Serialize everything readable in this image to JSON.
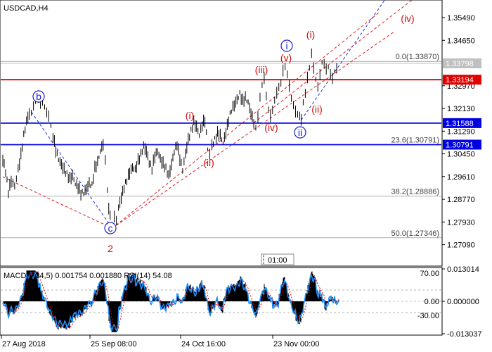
{
  "chart_data": [
    {
      "type": "candlestick",
      "title": "USDCAD,H4",
      "ylim": [
        1.2635,
        1.3609
      ],
      "price_ticks": [
        "1.35490",
        "1.34650",
        "1.32970",
        "1.32130",
        "1.31290",
        "1.30450",
        "1.29610",
        "1.28770",
        "1.27930",
        "1.27090"
      ],
      "levels": [
        {
          "label": "1.33798",
          "value": 1.33798,
          "color": "#c0c0c0"
        },
        {
          "label": "1.33194",
          "value": 1.33194,
          "color": "#e00000"
        },
        {
          "label": "1.31588",
          "value": 1.31588,
          "color": "#0000e0"
        },
        {
          "label": "1.30791",
          "value": 1.30791,
          "color": "#0000e0"
        }
      ],
      "fib_levels": [
        {
          "label": "0.0(1.33870)",
          "value": 1.3387
        },
        {
          "label": "23.6(1.30791)",
          "value": 1.30791
        },
        {
          "label": "38.2(1.28886)",
          "value": 1.28886
        },
        {
          "label": "50.0(1.27346)",
          "value": 1.27346
        }
      ],
      "price_path": [
        [
          0,
          1.302
        ],
        [
          4,
          1.298
        ],
        [
          8,
          1.2905
        ],
        [
          12,
          1.295
        ],
        [
          17,
          1.293
        ],
        [
          22,
          1.299
        ],
        [
          26,
          1.304
        ],
        [
          30,
          1.311
        ],
        [
          34,
          1.316
        ],
        [
          38,
          1.319
        ],
        [
          41,
          1.32
        ],
        [
          44,
          1.323
        ],
        [
          47,
          1.326
        ],
        [
          51,
          1.325
        ],
        [
          54,
          1.323
        ],
        [
          57,
          1.324
        ],
        [
          60,
          1.321
        ],
        [
          63,
          1.319
        ],
        [
          66,
          1.318
        ],
        [
          69,
          1.315
        ],
        [
          72,
          1.311
        ],
        [
          76,
          1.306
        ],
        [
          80,
          1.303
        ],
        [
          84,
          1.301
        ],
        [
          88,
          1.299
        ],
        [
          92,
          1.297
        ],
        [
          96,
          1.295
        ],
        [
          100,
          1.296
        ],
        [
          104,
          1.293
        ],
        [
          108,
          1.292
        ],
        [
          112,
          1.29
        ],
        [
          116,
          1.2905
        ],
        [
          120,
          1.292
        ],
        [
          124,
          1.294
        ],
        [
          128,
          1.293
        ],
        [
          132,
          1.299
        ],
        [
          136,
          1.301
        ],
        [
          140,
          1.305
        ],
        [
          144,
          1.308
        ],
        [
          147,
          1.303
        ],
        [
          150,
          1.292
        ],
        [
          152,
          1.285
        ],
        [
          154,
          1.282
        ],
        [
          157,
          1.277
        ],
        [
          160,
          1.2805
        ],
        [
          163,
          1.279
        ],
        [
          166,
          1.284
        ],
        [
          170,
          1.288
        ],
        [
          174,
          1.292
        ],
        [
          178,
          1.295
        ],
        [
          182,
          1.298
        ],
        [
          186,
          1.3
        ],
        [
          190,
          1.299
        ],
        [
          194,
          1.302
        ],
        [
          198,
          1.304
        ],
        [
          202,
          1.307
        ],
        [
          206,
          1.305
        ],
        [
          210,
          1.301
        ],
        [
          214,
          1.299
        ],
        [
          218,
          1.304
        ],
        [
          222,
          1.306
        ],
        [
          226,
          1.303
        ],
        [
          230,
          1.301
        ],
        [
          234,
          1.299
        ],
        [
          238,
          1.296
        ],
        [
          242,
          1.3
        ],
        [
          246,
          1.305
        ],
        [
          250,
          1.308
        ],
        [
          254,
          1.303
        ],
        [
          258,
          1.299
        ],
        [
          262,
          1.305
        ],
        [
          266,
          1.31
        ],
        [
          270,
          1.313
        ],
        [
          274,
          1.316
        ],
        [
          278,
          1.314
        ],
        [
          282,
          1.311
        ],
        [
          286,
          1.315
        ],
        [
          290,
          1.317
        ],
        [
          294,
          1.307
        ],
        [
          297,
          1.305
        ],
        [
          300,
          1.308
        ],
        [
          304,
          1.31
        ],
        [
          308,
          1.312
        ],
        [
          312,
          1.311
        ],
        [
          316,
          1.308
        ],
        [
          320,
          1.312
        ],
        [
          324,
          1.317
        ],
        [
          328,
          1.321
        ],
        [
          332,
          1.323
        ],
        [
          336,
          1.325
        ],
        [
          340,
          1.327
        ],
        [
          344,
          1.324
        ],
        [
          348,
          1.325
        ],
        [
          352,
          1.323
        ],
        [
          356,
          1.319
        ],
        [
          360,
          1.316
        ],
        [
          363,
          1.315
        ],
        [
          366,
          1.319
        ],
        [
          369,
          1.326
        ],
        [
          372,
          1.33
        ],
        [
          375,
          1.332
        ],
        [
          378,
          1.325
        ],
        [
          381,
          1.32
        ],
        [
          384,
          1.318
        ],
        [
          387,
          1.321
        ],
        [
          390,
          1.325
        ],
        [
          393,
          1.328
        ],
        [
          396,
          1.33
        ],
        [
          399,
          1.331
        ],
        [
          402,
          1.335
        ],
        [
          405,
          1.336
        ],
        [
          408,
          1.333
        ],
        [
          411,
          1.329
        ],
        [
          414,
          1.325
        ],
        [
          417,
          1.323
        ],
        [
          420,
          1.321
        ],
        [
          423,
          1.32
        ],
        [
          426,
          1.319
        ],
        [
          428,
          1.317
        ],
        [
          431,
          1.323
        ],
        [
          434,
          1.326
        ],
        [
          437,
          1.332
        ],
        [
          440,
          1.336
        ],
        [
          443,
          1.342
        ],
        [
          446,
          1.337
        ],
        [
          449,
          1.333
        ],
        [
          452,
          1.33
        ],
        [
          455,
          1.334
        ],
        [
          458,
          1.338
        ],
        [
          461,
          1.337
        ],
        [
          464,
          1.335
        ],
        [
          467,
          1.336
        ],
        [
          470,
          1.334
        ],
        [
          473,
          1.333
        ],
        [
          476,
          1.336
        ],
        [
          479,
          1.337
        ],
        [
          482,
          1.338
        ]
      ],
      "wave_labels": [
        {
          "text": "b",
          "color": "#1c1cd6",
          "circled": true
        },
        {
          "text": "c",
          "color": "#1c1cd6",
          "circled": true
        },
        {
          "text": "2",
          "color": "#d01010",
          "circled": false
        },
        {
          "text": "(i)",
          "color": "#d01010",
          "circled": false
        },
        {
          "text": "(ii)",
          "color": "#d01010",
          "circled": false
        },
        {
          "text": "(iii)",
          "color": "#d01010",
          "circled": false
        },
        {
          "text": "(iv)",
          "color": "#d01010",
          "circled": false
        },
        {
          "text": "(v)",
          "color": "#d01010",
          "circled": false
        },
        {
          "text": "i",
          "color": "#1c1cd6",
          "circled": true
        },
        {
          "text": "ii",
          "color": "#1c1cd6",
          "circled": true
        },
        {
          "text": "(i)",
          "color": "#d01010",
          "circled": false
        },
        {
          "text": "(ii)",
          "color": "#d01010",
          "circled": false
        },
        {
          "text": "(iv)",
          "color": "#d01010",
          "circled": false
        }
      ],
      "x_ticks": [
        "27 Aug 2018",
        "25 Sep 08:00",
        "24 Oct 16:00",
        "23 Nov 00:00"
      ],
      "time_marker": "01:00"
    },
    {
      "type": "bar",
      "title": "MACD(5,34,5) 0.001754 0.001880 RSI(14) 54.08",
      "ticks_right": [
        "0.013014",
        "0.000000",
        "-0.013037"
      ],
      "ticks_left": [
        "70.00",
        "0.00",
        "-30.00"
      ],
      "ylim": [
        -0.013037,
        0.013014
      ],
      "rsi_levels": [
        70,
        30
      ],
      "series": [
        {
          "name": "MACD",
          "color": "#000000"
        },
        {
          "name": "signal",
          "color": "#e00000"
        },
        {
          "name": "RSI",
          "color": "#1e90ff"
        }
      ]
    }
  ]
}
